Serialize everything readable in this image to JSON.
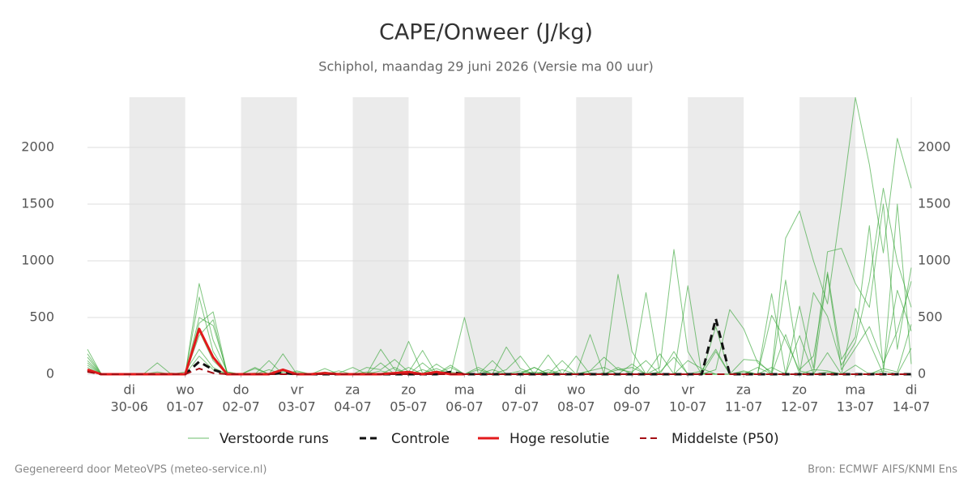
{
  "chart_data": {
    "type": "line",
    "title": "CAPE/Onweer (J/kg)",
    "subtitle": "Schiphol, maandag 29 juni 2026 (Versie ma 00 uur)",
    "footer_left": "Gegenereerd door MeteoVPS (meteo-service.nl)",
    "footer_right": "Bron: ECMWF AIFS/KNMI Ens",
    "x": [
      0.25,
      0.5,
      0.75,
      1,
      1.25,
      1.5,
      1.75,
      2,
      2.25,
      2.5,
      2.75,
      3,
      3.25,
      3.5,
      3.75,
      4,
      4.25,
      4.5,
      4.75,
      5,
      5.25,
      5.5,
      5.75,
      6,
      6.25,
      6.5,
      6.75,
      7,
      7.25,
      7.5,
      7.75,
      8,
      8.25,
      8.5,
      8.75,
      9,
      9.25,
      9.5,
      9.75,
      10,
      10.25,
      10.5,
      10.75,
      11,
      11.25,
      11.5,
      11.75,
      12,
      12.25,
      12.5,
      12.75,
      13,
      13.25,
      13.5,
      13.75,
      14,
      14.25,
      14.5,
      14.75,
      15
    ],
    "xlim": [
      0.25,
      15
    ],
    "xticks": [
      {
        "value": 1,
        "label": "30-06",
        "weekday": "di"
      },
      {
        "value": 2,
        "label": "01-07",
        "weekday": "wo"
      },
      {
        "value": 3,
        "label": "02-07",
        "weekday": "do"
      },
      {
        "value": 4,
        "label": "03-07",
        "weekday": "vr"
      },
      {
        "value": 5,
        "label": "04-07",
        "weekday": "za"
      },
      {
        "value": 6,
        "label": "05-07",
        "weekday": "zo"
      },
      {
        "value": 7,
        "label": "06-07",
        "weekday": "ma"
      },
      {
        "value": 8,
        "label": "07-07",
        "weekday": "di"
      },
      {
        "value": 9,
        "label": "08-07",
        "weekday": "wo"
      },
      {
        "value": 10,
        "label": "09-07",
        "weekday": "do"
      },
      {
        "value": 11,
        "label": "10-07",
        "weekday": "vr"
      },
      {
        "value": 12,
        "label": "11-07",
        "weekday": "za"
      },
      {
        "value": 13,
        "label": "12-07",
        "weekday": "zo"
      },
      {
        "value": 14,
        "label": "13-07",
        "weekday": "ma"
      },
      {
        "value": 15,
        "label": "14-07",
        "weekday": "di"
      }
    ],
    "ylim": [
      0,
      2443
    ],
    "yticks": [
      0,
      500,
      1000,
      1500,
      2000
    ],
    "grid": true,
    "series": [
      {
        "name": "Verstoorde runs",
        "color": "#2ca02c",
        "line_width": 1,
        "dashed": false,
        "members": [
          [
            220,
            0,
            0,
            0,
            0,
            20,
            0,
            0,
            800,
            300,
            20,
            0,
            10,
            0,
            30,
            0,
            0,
            10,
            0,
            0,
            0,
            220,
            40,
            10,
            0,
            90,
            10,
            0,
            0,
            0,
            240,
            50,
            0,
            20,
            0,
            160,
            0,
            10,
            880,
            200,
            0,
            60,
            1100,
            200,
            0,
            40,
            570,
            400,
            100,
            20,
            1200,
            1440,
            1000,
            620,
            1500,
            2440,
            1850,
            1070,
            2080,
            1640
          ],
          [
            180,
            0,
            0,
            0,
            0,
            0,
            10,
            0,
            680,
            200,
            0,
            0,
            0,
            120,
            0,
            30,
            0,
            0,
            10,
            60,
            0,
            30,
            0,
            290,
            10,
            50,
            0,
            500,
            0,
            40,
            0,
            10,
            60,
            0,
            40,
            0,
            350,
            0,
            60,
            0,
            720,
            0,
            0,
            780,
            0,
            420,
            0,
            20,
            0,
            710,
            0,
            600,
            50,
            1080,
            1110,
            800,
            590,
            1500,
            220,
            940
          ],
          [
            150,
            0,
            0,
            0,
            0,
            0,
            0,
            0,
            450,
            550,
            10,
            0,
            60,
            0,
            180,
            0,
            0,
            20,
            0,
            0,
            60,
            40,
            130,
            20,
            210,
            0,
            80,
            0,
            60,
            0,
            40,
            160,
            0,
            40,
            0,
            0,
            30,
            150,
            40,
            20,
            120,
            0,
            200,
            0,
            30,
            220,
            0,
            0,
            60,
            0,
            350,
            0,
            720,
            510,
            80,
            280,
            820,
            1640,
            990,
            590
          ],
          [
            120,
            0,
            0,
            0,
            0,
            100,
            0,
            0,
            340,
            480,
            0,
            0,
            50,
            0,
            0,
            20,
            0,
            50,
            0,
            0,
            0,
            100,
            0,
            0,
            40,
            0,
            60,
            0,
            0,
            120,
            0,
            30,
            0,
            170,
            0,
            0,
            10,
            0,
            40,
            60,
            0,
            180,
            0,
            120,
            50,
            0,
            0,
            130,
            120,
            0,
            830,
            40,
            160,
            880,
            40,
            230,
            420,
            100,
            380,
            820
          ],
          [
            100,
            0,
            0,
            0,
            0,
            0,
            0,
            0,
            500,
            430,
            20,
            0,
            0,
            40,
            0,
            0,
            0,
            0,
            30,
            0,
            0,
            0,
            60,
            0,
            100,
            0,
            20,
            0,
            40,
            0,
            0,
            0,
            60,
            0,
            120,
            0,
            30,
            60,
            0,
            90,
            0,
            20,
            150,
            0,
            0,
            200,
            0,
            30,
            0,
            520,
            300,
            30,
            0,
            900,
            130,
            330,
            1310,
            50,
            740,
            380
          ],
          [
            80,
            0,
            0,
            0,
            0,
            0,
            0,
            0,
            380,
            120,
            0,
            0,
            0,
            0,
            0,
            0,
            0,
            0,
            0,
            0,
            20,
            0,
            0,
            60,
            0,
            0,
            0,
            0,
            0,
            0,
            0,
            0,
            0,
            0,
            0,
            0,
            0,
            0,
            0,
            0,
            0,
            0,
            0,
            0,
            0,
            0,
            0,
            0,
            0,
            0,
            0,
            340,
            0,
            190,
            0,
            580,
            280,
            0,
            1500,
            90
          ],
          [
            60,
            0,
            0,
            0,
            0,
            0,
            0,
            20,
            220,
            60,
            0,
            0,
            0,
            0,
            20,
            0,
            0,
            0,
            0,
            0,
            0,
            0,
            0,
            0,
            0,
            30,
            0,
            0,
            0,
            0,
            0,
            0,
            20,
            0,
            0,
            0,
            0,
            0,
            0,
            0,
            0,
            0,
            0,
            0,
            10,
            0,
            0,
            0,
            0,
            60,
            0,
            0,
            40,
            30,
            0,
            80,
            0,
            50,
            20,
            440
          ],
          [
            40,
            0,
            0,
            0,
            0,
            0,
            0,
            0,
            160,
            40,
            0,
            0,
            0,
            0,
            0,
            0,
            0,
            0,
            0,
            0,
            0,
            0,
            0,
            0,
            0,
            0,
            0,
            0,
            0,
            0,
            0,
            0,
            0,
            0,
            0,
            0,
            0,
            0,
            0,
            0,
            0,
            0,
            0,
            0,
            0,
            0,
            0,
            0,
            0,
            0,
            0,
            0,
            0,
            20,
            0,
            0,
            0,
            30,
            0,
            230
          ]
        ]
      },
      {
        "name": "Controle",
        "color": "#111111",
        "line_width": 3,
        "dashed": true,
        "values": [
          30,
          0,
          0,
          0,
          0,
          0,
          0,
          0,
          110,
          40,
          0,
          0,
          0,
          0,
          10,
          0,
          0,
          0,
          0,
          0,
          0,
          0,
          0,
          0,
          0,
          0,
          20,
          0,
          0,
          0,
          0,
          0,
          0,
          0,
          0,
          0,
          0,
          0,
          0,
          0,
          0,
          0,
          0,
          0,
          0,
          490,
          0,
          0,
          0,
          0,
          0,
          0,
          0,
          0,
          0,
          0,
          0,
          0,
          0,
          0
        ]
      },
      {
        "name": "Hoge resolutie",
        "color": "#e31a1c",
        "line_width": 3,
        "dashed": false,
        "values": [
          40,
          0,
          0,
          0,
          0,
          0,
          0,
          0,
          400,
          150,
          0,
          0,
          0,
          0,
          40,
          0,
          0,
          10,
          0,
          0,
          0,
          0,
          10,
          20,
          0,
          20,
          0,
          0,
          null,
          null,
          null,
          null,
          null,
          null,
          null,
          null,
          null,
          null,
          null,
          null,
          null,
          null,
          null,
          null,
          null,
          null,
          null,
          null,
          null,
          null,
          null,
          null,
          null,
          null,
          null,
          null,
          null,
          null,
          null,
          null
        ]
      },
      {
        "name": "Middelste (P50)",
        "color": "#a50f15",
        "line_width": 2,
        "dashed": true,
        "values": [
          20,
          0,
          0,
          0,
          0,
          0,
          0,
          0,
          50,
          10,
          0,
          0,
          0,
          0,
          0,
          0,
          0,
          0,
          0,
          0,
          0,
          0,
          0,
          0,
          0,
          0,
          0,
          0,
          0,
          0,
          0,
          0,
          0,
          0,
          0,
          0,
          0,
          0,
          0,
          0,
          0,
          0,
          0,
          0,
          0,
          0,
          0,
          0,
          0,
          0,
          0,
          0,
          0,
          0,
          0,
          0,
          0,
          0,
          0,
          0
        ]
      }
    ]
  }
}
